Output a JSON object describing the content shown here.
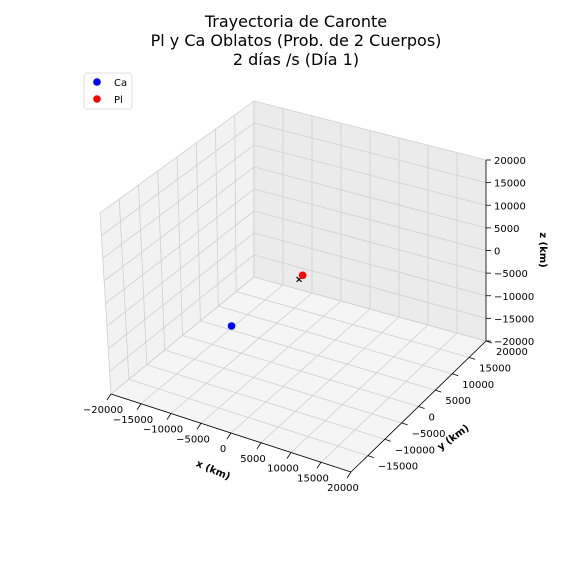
{
  "chart_data": {
    "type": "scatter",
    "title_lines": [
      "Trayectoria de Caronte",
      "Pl y Ca Oblatos (Prob. de 2 Cuerpos)",
      "2 días /s   (Día 1)"
    ],
    "xlabel": "x (km)",
    "ylabel": "y (km)",
    "zlabel": "z (km)",
    "xlim": [
      -20000,
      20000
    ],
    "ylim": [
      -20000,
      20000
    ],
    "zlim": [
      -20000,
      20000
    ],
    "x_ticks": [
      "−20000",
      "−15000",
      "−10000",
      "−5000",
      "0",
      "5000",
      "10000",
      "15000",
      "20000"
    ],
    "y_ticks": [
      "−15000",
      "−10000",
      "−5000",
      "0",
      "5000",
      "10000",
      "15000",
      "20000"
    ],
    "z_ticks": [
      "−20000",
      "−15000",
      "−10000",
      "−5000",
      "0",
      "5000",
      "10000",
      "15000",
      "20000"
    ],
    "grid": true,
    "legend_position": "top-left",
    "series": [
      {
        "name": "Ca",
        "color": "#0000ff",
        "x": -1200,
        "y": -17000,
        "z": 0
      },
      {
        "name": "Pl",
        "color": "#ff0000",
        "x": 0,
        "y": 1000,
        "z": 0
      }
    ],
    "center_marker": {
      "symbol": "×",
      "x": 0,
      "y": 0,
      "z": 0
    }
  }
}
